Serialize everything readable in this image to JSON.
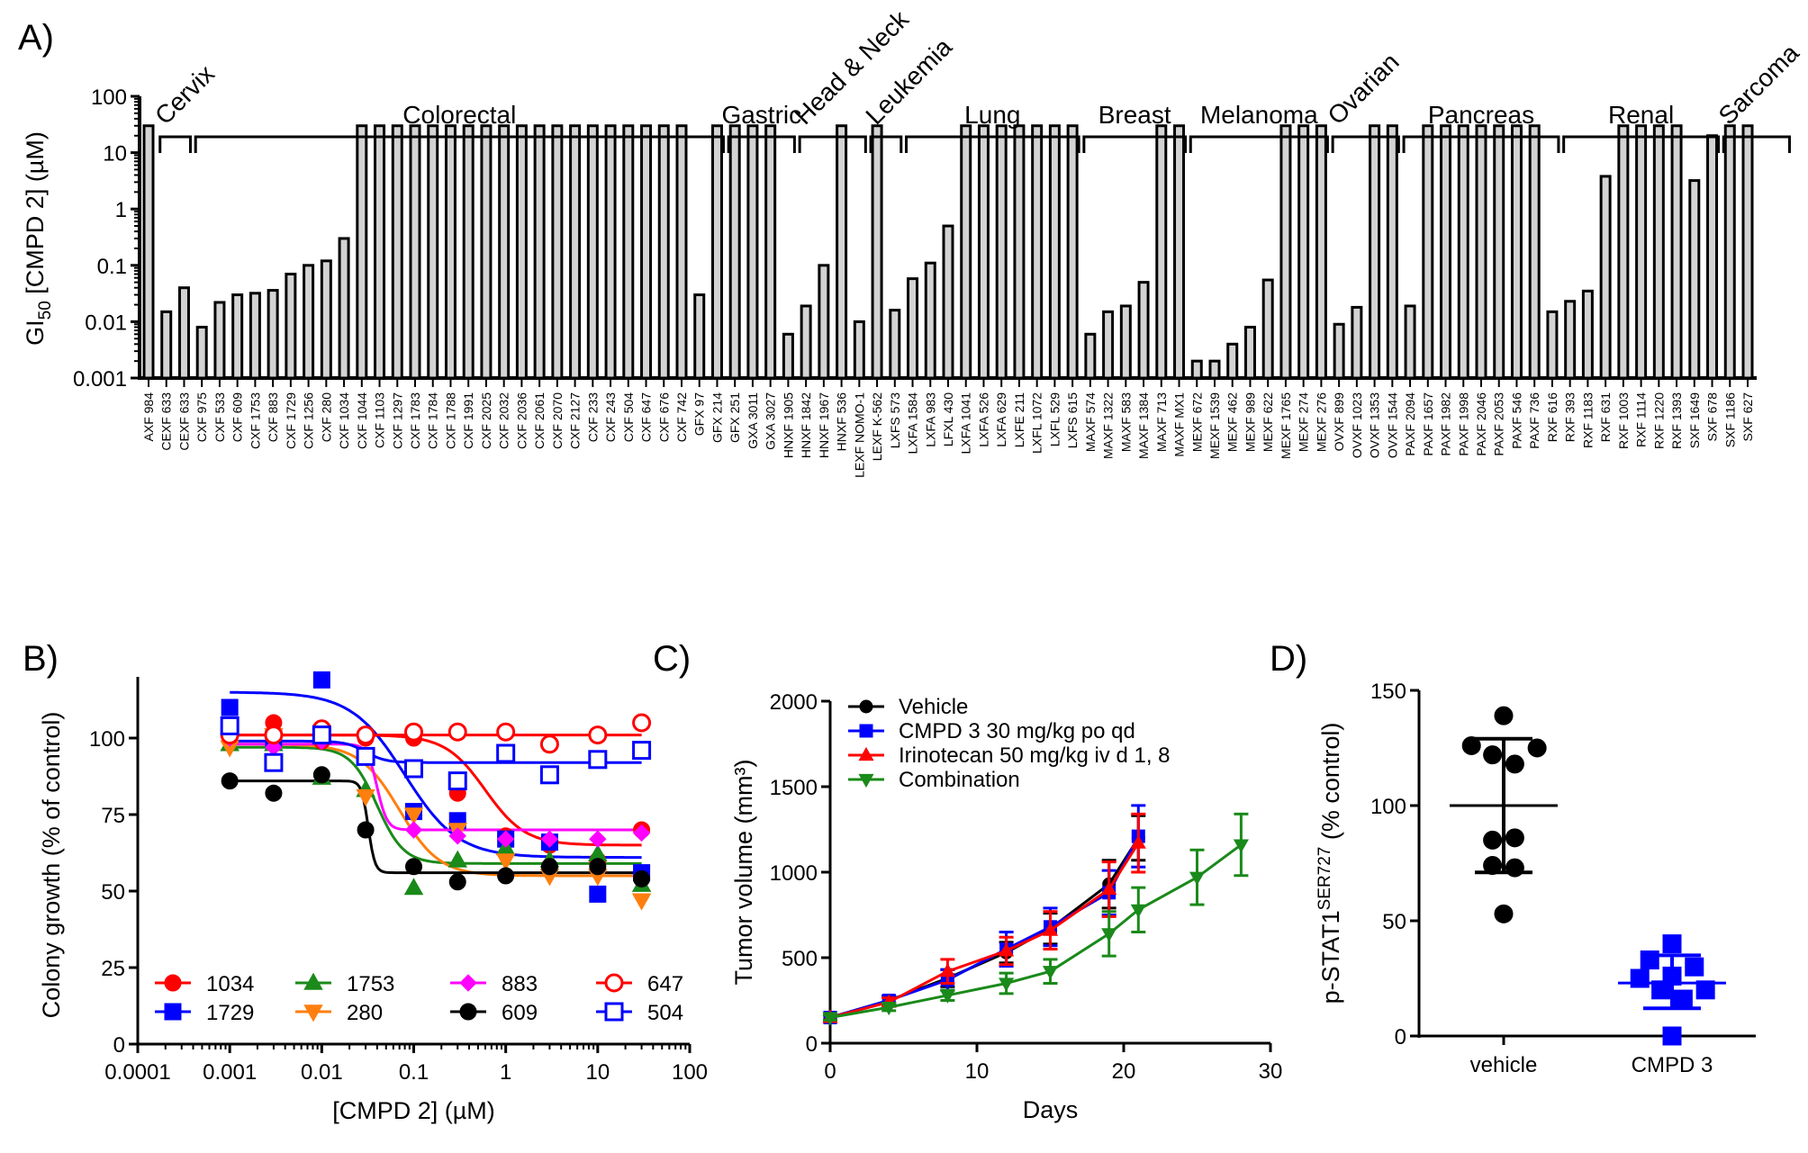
{
  "panels": {
    "A": "A)",
    "B": "B)",
    "C": "C)",
    "D": "D)"
  },
  "chart_data": [
    {
      "id": "A",
      "type": "bar",
      "ylabel": "GI50 [CMPD 2] (µM)",
      "ylabel_main": "GI",
      "ylabel_sub": "50",
      "ylabel_rest": " [CMPD 2] (µM)",
      "yscale": "log",
      "ylim": [
        0.001,
        100
      ],
      "yticks": [
        "0.001",
        "0.01",
        "0.1",
        "1",
        "10",
        "100"
      ],
      "ytick_values": [
        0.001,
        0.01,
        0.1,
        1,
        10,
        100
      ],
      "bar_fill": "#d3d3d3",
      "groups": [
        {
          "name": "Cervix",
          "start": 1,
          "end": 2,
          "rotated": true
        },
        {
          "name": "Colorectal",
          "start": 3,
          "end": 32,
          "rotated": false
        },
        {
          "name": "Gastric",
          "start": 33,
          "end": 36,
          "rotated": false
        },
        {
          "name": "Head & Neck",
          "start": 37,
          "end": 40,
          "rotated": true
        },
        {
          "name": "Leukemia",
          "start": 41,
          "end": 42,
          "rotated": true
        },
        {
          "name": "Lung",
          "start": 43,
          "end": 52,
          "rotated": false
        },
        {
          "name": "Breast",
          "start": 53,
          "end": 58,
          "rotated": false
        },
        {
          "name": "Melanoma",
          "start": 59,
          "end": 66,
          "rotated": false
        },
        {
          "name": "Ovarian",
          "start": 67,
          "end": 70,
          "rotated": true
        },
        {
          "name": "Pancreas",
          "start": 71,
          "end": 79,
          "rotated": false
        },
        {
          "name": "Renal",
          "start": 80,
          "end": 88,
          "rotated": false
        },
        {
          "name": "Sarcoma",
          "start": 89,
          "end": 92,
          "rotated": true
        }
      ],
      "categories": [
        "AXF 984",
        "CEXF 633",
        "CEXF 633",
        "CXF 975",
        "CXF 533",
        "CXF 609",
        "CXF 1753",
        "CXF 883",
        "CXF 1729",
        "CXF 1256",
        "CXF 280",
        "CXF 1034",
        "CXF 1044",
        "CXF 1103",
        "CXF 1297",
        "CXF 1783",
        "CXF 1784",
        "CXF 1788",
        "CXF 1991",
        "CXF 2025",
        "CXF 2032",
        "CXF 2036",
        "CXF 2061",
        "CXF 2070",
        "CXF 2127",
        "CXF 233",
        "CXF 243",
        "CXF 504",
        "CXF 647",
        "CXF 676",
        "CXF 742",
        "GFX 97",
        "GFX 214",
        "GFX 251",
        "GXA 3011",
        "GXA 3027",
        "HNXF 1905",
        "HNXF 1842",
        "HNXF 1967",
        "HNXF 536",
        "LEXF NOMO-1",
        "LEXF K-562",
        "LXFS 573",
        "LXFA 1584",
        "LXFA 983",
        "LFXL 430",
        "LXFA 1041",
        "LXFA 526",
        "LXFA 629",
        "LXFE 211",
        "LXFL 1072",
        "LXFL 529",
        "LXFS 615",
        "MAXF 574",
        "MAXF 1322",
        "MAXF 583",
        "MAXF 1384",
        "MAXF 713",
        "MAXF MX1",
        "MEXF 672",
        "MEXF 1539",
        "MEXF 462",
        "MEXF 989",
        "MEXF 622",
        "MEXF 1765",
        "MEXF 274",
        "MEXF 276",
        "OVXF 899",
        "OVXF 1023",
        "OVXF 1353",
        "OVXF 1544",
        "PAXF 2094",
        "PAXF 1657",
        "PAXF 1982",
        "PAXF 1998",
        "PAXF 2046",
        "PAXF 2053",
        "PAXF 546",
        "PAXF 736",
        "RXF 616",
        "RXF 393",
        "RXF 1183",
        "RXF 631",
        "RXF 1003",
        "RXF 1114",
        "RXF 1220",
        "RXF 1393",
        "SXF 1649",
        "SXF 678",
        "SXF 1186",
        "SXF 627"
      ],
      "values": [
        30,
        0.015,
        0.04,
        0.008,
        0.022,
        0.03,
        0.032,
        0.036,
        0.07,
        0.1,
        0.12,
        0.3,
        30,
        30,
        30,
        30,
        30,
        30,
        30,
        30,
        30,
        30,
        30,
        30,
        30,
        30,
        30,
        30,
        30,
        30,
        30,
        0.03,
        30,
        30,
        30,
        30,
        0.006,
        0.019,
        0.1,
        30,
        0.01,
        30,
        0.016,
        0.058,
        0.11,
        0.5,
        30,
        30,
        30,
        30,
        30,
        30,
        30,
        0.006,
        0.015,
        0.019,
        0.05,
        30,
        30,
        0.002,
        0.002,
        0.004,
        0.008,
        0.055,
        30,
        30,
        30,
        0.009,
        0.018,
        30,
        30,
        0.019,
        30,
        30,
        30,
        30,
        30,
        30,
        30,
        0.015,
        0.023,
        0.035,
        3.8,
        30,
        30,
        30,
        30,
        3.2,
        20,
        30,
        30
      ]
    },
    {
      "id": "B",
      "type": "scatter",
      "xlabel": "[CMPD 2] (µM)",
      "ylabel": "Colony growth (% of control)",
      "xscale": "log",
      "xlim": [
        0.0001,
        100
      ],
      "ylim": [
        0,
        120
      ],
      "xticks": [
        "0.0001",
        "0.001",
        "0.01",
        "0.1",
        "1",
        "10",
        "100"
      ],
      "xtick_values": [
        0.0001,
        0.001,
        0.01,
        0.1,
        1,
        10,
        100
      ],
      "yticks": [
        "0",
        "25",
        "50",
        "75",
        "100"
      ],
      "ytick_values": [
        0,
        25,
        50,
        75,
        100
      ],
      "legend_position": "bottom",
      "x": [
        0.001,
        0.003,
        0.01,
        0.03,
        0.1,
        0.3,
        1,
        3,
        10,
        30
      ],
      "series": [
        {
          "name": "1034",
          "color": "#ff0000",
          "marker": "circle",
          "filled": true,
          "values": [
            101,
            105,
            99,
            100,
            100,
            82,
            68,
            65,
            60,
            70
          ],
          "fit": {
            "top": 101,
            "bottom": 65,
            "ec50": 0.6,
            "hill": 2
          }
        },
        {
          "name": "1729",
          "color": "#0000ff",
          "marker": "square",
          "filled": true,
          "values": [
            110,
            100,
            119,
            94,
            76,
            73,
            67,
            66,
            49,
            56
          ],
          "fit": {
            "top": 115,
            "bottom": 61,
            "ec50": 0.08,
            "hill": 1.5
          }
        },
        {
          "name": "1753",
          "color": "#1a8a1a",
          "marker": "triangle-up",
          "filled": true,
          "values": [
            98,
            98,
            87,
            83,
            51,
            60,
            64,
            60,
            62,
            52
          ],
          "fit": {
            "top": 97,
            "bottom": 59,
            "ec50": 0.04,
            "hill": 3
          }
        },
        {
          "name": "280",
          "color": "#ff7f0e",
          "marker": "triangle-down",
          "filled": true,
          "values": [
            97,
            101,
            102,
            81,
            75,
            70,
            60,
            55,
            55,
            47
          ],
          "fit": {
            "top": 98,
            "bottom": 55,
            "ec50": 0.07,
            "hill": 2
          }
        },
        {
          "name": "883",
          "color": "#ff00ff",
          "marker": "diamond",
          "filled": true,
          "values": [
            100,
            97,
            99,
            94,
            70,
            68,
            67,
            67,
            67,
            69
          ],
          "fit": {
            "top": 98,
            "bottom": 70,
            "ec50": 0.04,
            "hill": 8
          }
        },
        {
          "name": "609",
          "color": "#000000",
          "marker": "circle",
          "filled": true,
          "values": [
            86,
            82,
            88,
            70,
            58,
            53,
            55,
            58,
            58,
            54
          ],
          "fit": {
            "top": 86,
            "bottom": 56,
            "ec50": 0.032,
            "hill": 12
          }
        },
        {
          "name": "647",
          "color": "#ff0000",
          "marker": "circle",
          "filled": false,
          "values": [
            101,
            101,
            103,
            101,
            102,
            102,
            102,
            98,
            101,
            105
          ],
          "fit": {
            "top": 101,
            "bottom": 101,
            "ec50": 1,
            "hill": 1
          }
        },
        {
          "name": "504",
          "color": "#0000ff",
          "marker": "square",
          "filled": false,
          "values": [
            104,
            92,
            101,
            94,
            90,
            86,
            95,
            88,
            93,
            96
          ],
          "fit": {
            "top": 99,
            "bottom": 92,
            "ec50": 0.03,
            "hill": 4
          }
        }
      ]
    },
    {
      "id": "C",
      "type": "line",
      "xlabel": "Days",
      "ylabel": "Tumor volume (mm³)",
      "xlim": [
        0,
        30
      ],
      "ylim": [
        0,
        2000
      ],
      "xticks": [
        "0",
        "10",
        "20",
        "30"
      ],
      "xtick_values": [
        0,
        10,
        20,
        30
      ],
      "yticks": [
        "0",
        "500",
        "1000",
        "1500",
        "2000"
      ],
      "ytick_values": [
        0,
        500,
        1000,
        1500,
        2000
      ],
      "legend_position": "top-left",
      "series": [
        {
          "name": "Vehicle",
          "color": "#000000",
          "marker": "circle",
          "x": [
            0,
            4,
            8,
            12,
            15,
            19,
            21
          ],
          "values": [
            150,
            250,
            380,
            530,
            670,
            930,
            1200
          ],
          "err": [
            15,
            25,
            50,
            60,
            90,
            140,
            130
          ]
        },
        {
          "name": "CMPD 3 30 mg/kg po qd",
          "color": "#0000ff",
          "marker": "square",
          "x": [
            0,
            4,
            8,
            12,
            15,
            19,
            21
          ],
          "values": [
            150,
            250,
            370,
            550,
            680,
            880,
            1210
          ],
          "err": [
            15,
            25,
            60,
            100,
            110,
            130,
            180
          ]
        },
        {
          "name": "Irinotecan 50 mg/kg iv d 1, 8",
          "color": "#ff0000",
          "marker": "triangle-up",
          "x": [
            0,
            4,
            8,
            12,
            15,
            19,
            21
          ],
          "values": [
            150,
            240,
            420,
            540,
            660,
            900,
            1170
          ],
          "err": [
            15,
            25,
            70,
            80,
            110,
            160,
            170
          ]
        },
        {
          "name": "Combination",
          "color": "#1a8a1a",
          "marker": "triangle-down",
          "x": [
            0,
            4,
            8,
            12,
            15,
            19,
            21,
            25,
            28
          ],
          "values": [
            150,
            210,
            280,
            350,
            420,
            640,
            780,
            970,
            1160
          ],
          "err": [
            15,
            20,
            30,
            60,
            70,
            130,
            130,
            160,
            180
          ]
        }
      ]
    },
    {
      "id": "D",
      "type": "scatter",
      "ylabel_main": "p-STAT1",
      "ylabel_sup": "SER727",
      "ylabel_rest": " (% control)",
      "ylabel": "p-STAT1 SER727 (% control)",
      "ylim": [
        0,
        150
      ],
      "yticks": [
        "0",
        "50",
        "100",
        "150"
      ],
      "ytick_values": [
        0,
        50,
        100,
        150
      ],
      "categories": [
        "vehicle",
        "CMPD 3"
      ],
      "series": [
        {
          "name": "vehicle",
          "color": "#000000",
          "marker": "circle",
          "mean": 100,
          "sd_low": 71,
          "sd_high": 129,
          "points": [
            [
              0.0,
              139
            ],
            [
              -0.26,
              126
            ],
            [
              0.27,
              125
            ],
            [
              -0.09,
              122
            ],
            [
              0.09,
              118
            ],
            [
              -0.09,
              85
            ],
            [
              0.09,
              86
            ],
            [
              -0.09,
              74
            ],
            [
              0.09,
              73
            ],
            [
              0.0,
              53
            ]
          ]
        },
        {
          "name": "CMPD 3",
          "color": "#0000ff",
          "marker": "square",
          "mean": 23,
          "sd_low": 12,
          "sd_high": 35,
          "points": [
            [
              0.0,
              40
            ],
            [
              -0.18,
              33
            ],
            [
              0.18,
              30
            ],
            [
              0.0,
              26
            ],
            [
              -0.26,
              25
            ],
            [
              -0.09,
              20
            ],
            [
              0.27,
              20
            ],
            [
              0.09,
              16
            ],
            [
              0.0,
              0
            ]
          ]
        }
      ]
    }
  ]
}
